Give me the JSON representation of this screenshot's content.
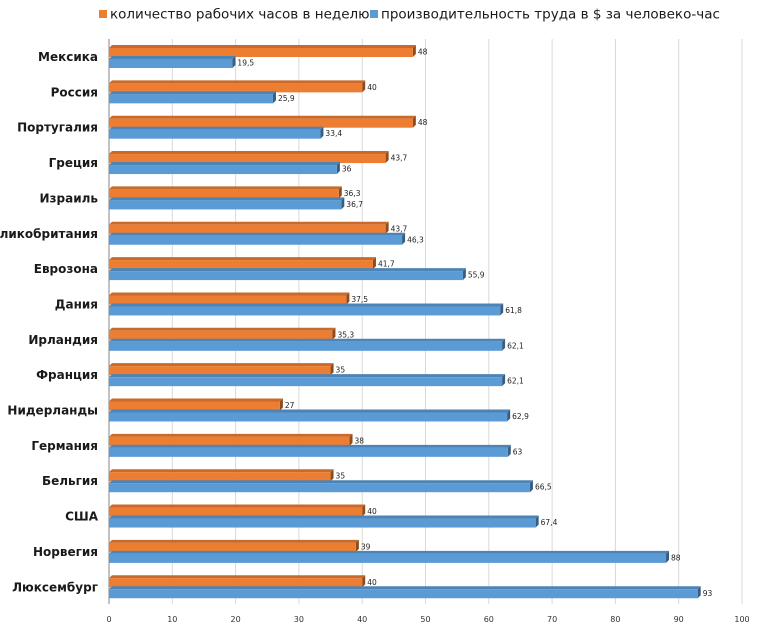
{
  "chart_data": {
    "type": "bar",
    "orientation": "horizontal",
    "categories": [
      "Мексика",
      "Россия",
      "Португалия",
      "Греция",
      "Израиль",
      "Великобритания",
      "Еврозона",
      "Дания",
      "Ирландия",
      "Франция",
      "Нидерланды",
      "Германия",
      "Бельгия",
      "США",
      "Норвегия",
      "Люксембург"
    ],
    "series": [
      {
        "name": "количество рабочих часов в неделю",
        "color": "#ED7D31",
        "values": [
          48,
          40,
          48,
          43.7,
          36.3,
          43.7,
          41.7,
          37.5,
          35.3,
          35,
          27,
          38,
          35,
          40,
          39,
          40
        ],
        "labels": [
          "48",
          "40",
          "48",
          "43,7",
          "36,3",
          "43,7",
          "41,7",
          "37,5",
          "35,3",
          "35",
          "27",
          "38",
          "35",
          "40",
          "39",
          "40"
        ]
      },
      {
        "name": "производительность труда в $ за человеко-час",
        "color": "#5B9BD5",
        "values": [
          19.5,
          25.9,
          33.4,
          36,
          36.7,
          46.3,
          55.9,
          61.8,
          62.1,
          62.1,
          62.9,
          63,
          66.5,
          67.4,
          88,
          93
        ],
        "labels": [
          "19,5",
          "25,9",
          "33,4",
          "36",
          "36,7",
          "46,3",
          "55,9",
          "61,8",
          "62,1",
          "62,1",
          "62,9",
          "63",
          "66,5",
          "67,4",
          "88",
          "93"
        ]
      }
    ],
    "xlim": [
      0,
      100
    ],
    "x_ticks": [
      "0",
      "10",
      "20",
      "30",
      "40",
      "50",
      "60",
      "70",
      "80",
      "90",
      "100"
    ],
    "grid": true,
    "legend_position": "top"
  }
}
